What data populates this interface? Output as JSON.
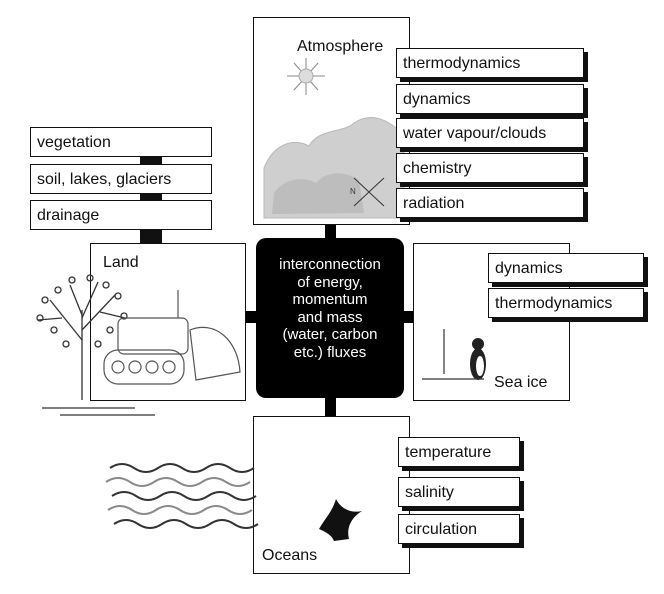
{
  "atmosphere": {
    "label": "Atmosphere",
    "processes": [
      "thermodynamics",
      "dynamics",
      "water vapour/clouds",
      "chemistry",
      "radiation"
    ]
  },
  "land": {
    "label": "Land",
    "components": [
      "vegetation",
      "soil, lakes, glaciers",
      "drainage"
    ]
  },
  "sea_ice": {
    "label": "Sea ice",
    "processes": [
      "dynamics",
      "thermodynamics"
    ]
  },
  "oceans": {
    "label": "Oceans",
    "properties": [
      "temperature",
      "salinity",
      "circulation"
    ]
  },
  "center": {
    "text": "interconnection\nof energy,\nmomentum\nand mass\n(water, carbon\netc.) fluxes"
  },
  "colors": {
    "ink": "#111111",
    "center_fill": "#000000",
    "cloud_gray": "#c8c8c8",
    "wave_gray": "#8a8a8a"
  }
}
